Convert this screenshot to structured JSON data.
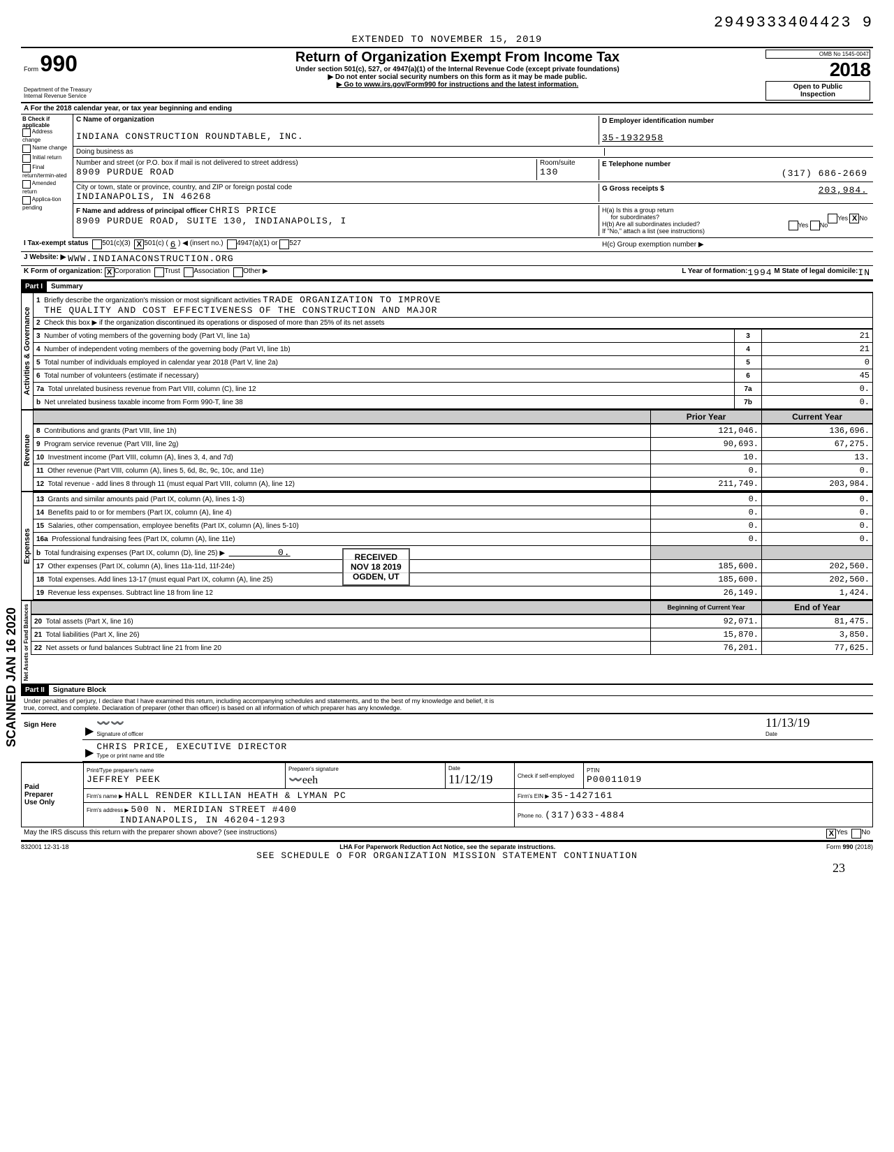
{
  "top_id": "2949333404423 9",
  "extended": "EXTENDED TO NOVEMBER 15, 2019",
  "form": {
    "number": "990",
    "prefix": "Form",
    "dept": "Department of the Treasury",
    "irs": "Internal Revenue Service"
  },
  "title": {
    "main": "Return of Organization Exempt From Income Tax",
    "sub": "Under section 501(c), 527, or 4947(a)(1) of the Internal Revenue Code (except private foundations)",
    "note1": "▶ Do not enter social security numbers on this form as it may be made public.",
    "note2": "▶ Go to www.irs.gov/Form990 for instructions and the latest information."
  },
  "year_box": {
    "omb": "OMB No 1545-0047",
    "year": "2018",
    "open": "Open to Public",
    "insp": "Inspection"
  },
  "row_a": "A For the 2018 calendar year, or tax year beginning                                              and ending",
  "section_b": {
    "header": "B Check if applicable",
    "items": [
      "Address change",
      "Name change",
      "Initial return",
      "Final return/termin-ated",
      "Amended return",
      "Applica-tion pending"
    ]
  },
  "section_c": {
    "name_label": "C Name of organization",
    "name": "INDIANA CONSTRUCTION ROUNDTABLE, INC.",
    "dba_label": "Doing business as",
    "addr_label": "Number and street (or P.O. box if mail is not delivered to street address)",
    "addr": "8909 PURDUE ROAD",
    "room_label": "Room/suite",
    "room": "130",
    "city_label": "City or town, state or province, country, and ZIP or foreign postal code",
    "city": "INDIANAPOLIS, IN  46268",
    "f_label": "F Name and address of principal officer",
    "f_name": "CHRIS PRICE",
    "f_addr": "8909 PURDUE ROAD, SUITE 130, INDIANAPOLIS, I"
  },
  "section_d": {
    "label": "D Employer identification number",
    "ein": "35-1932958",
    "e_label": "E Telephone number",
    "phone": "(317) 686-2669",
    "g_label": "G Gross receipts $",
    "g_val": "203,984.",
    "ha_label": "H(a) Is this a group return",
    "ha_sub": "for subordinates?",
    "hb_label": "H(b) Are all subordinates included?",
    "hb_note": "If \"No,\" attach a list (see instructions)",
    "hc_label": "H(c) Group exemption number ▶"
  },
  "tax_exempt": {
    "label": "I Tax-exempt status",
    "c3": "501(c)(3)",
    "c": "501(c) (",
    "cnum": "6",
    "cins": ") ◀ (insert no.)",
    "a1": "4947(a)(1) or",
    "o527": "527"
  },
  "website": {
    "label": "J Website: ▶",
    "val": "WWW.INDIANACONSTRUCTION.ORG"
  },
  "line_k": {
    "label": "K Form of organization:",
    "corp": "Corporation",
    "trust": "Trust",
    "assoc": "Association",
    "other": "Other ▶",
    "l_label": "L Year of formation:",
    "l_val": "1994",
    "m_label": "M State of legal domicile:",
    "m_val": "IN"
  },
  "part1": {
    "header": "Part I",
    "title": "Summary",
    "line1_label": "Briefly describe the organization's mission or most significant activities",
    "line1_val": "TRADE ORGANIZATION TO IMPROVE",
    "line1_val2": "THE QUALITY AND COST EFFECTIVENESS OF THE CONSTRUCTION AND MAJOR",
    "line2": "Check this box ▶         if the organization discontinued its operations or disposed of more than 25% of its net assets",
    "rows_gov": [
      {
        "n": "3",
        "desc": "Number of voting members of the governing body (Part VI, line 1a)",
        "box": "3",
        "val": "21"
      },
      {
        "n": "4",
        "desc": "Number of independent voting members of the governing body (Part VI, line 1b)",
        "box": "4",
        "val": "21"
      },
      {
        "n": "5",
        "desc": "Total number of individuals employed in calendar year 2018 (Part V, line 2a)",
        "box": "5",
        "val": "0"
      },
      {
        "n": "6",
        "desc": "Total number of volunteers (estimate if necessary)",
        "box": "6",
        "val": "45"
      },
      {
        "n": "7a",
        "desc": "Total unrelated business revenue from Part VIII, column (C), line 12",
        "box": "7a",
        "val": "0."
      },
      {
        "n": "b",
        "desc": "Net unrelated business taxable income from Form 990-T, line 38",
        "box": "7b",
        "val": "0."
      }
    ],
    "col_headers": {
      "prior": "Prior Year",
      "current": "Current Year"
    },
    "rows_rev": [
      {
        "n": "8",
        "desc": "Contributions and grants (Part VIII, line 1h)",
        "p": "121,046.",
        "c": "136,696."
      },
      {
        "n": "9",
        "desc": "Program service revenue (Part VIII, line 2g)",
        "p": "90,693.",
        "c": "67,275."
      },
      {
        "n": "10",
        "desc": "Investment income (Part VIII, column (A), lines 3, 4, and 7d)",
        "p": "10.",
        "c": "13."
      },
      {
        "n": "11",
        "desc": "Other revenue (Part VIII, column (A), lines 5, 6d, 8c, 9c, 10c, and 11e)",
        "p": "0.",
        "c": "0."
      },
      {
        "n": "12",
        "desc": "Total revenue - add lines 8 through 11 (must equal Part VIII, column (A), line 12)",
        "p": "211,749.",
        "c": "203,984."
      }
    ],
    "rows_exp": [
      {
        "n": "13",
        "desc": "Grants and similar amounts paid (Part IX, column (A), lines 1-3)",
        "p": "0.",
        "c": "0."
      },
      {
        "n": "14",
        "desc": "Benefits paid to or for members (Part IX, column (A), line 4)",
        "p": "0.",
        "c": "0."
      },
      {
        "n": "15",
        "desc": "Salaries, other compensation, employee benefits (Part IX, column (A), lines 5-10)",
        "p": "0.",
        "c": "0."
      },
      {
        "n": "16a",
        "desc": "Professional fundraising fees (Part IX, column (A), line 11e)",
        "p": "0.",
        "c": "0."
      },
      {
        "n": "b",
        "desc": "Total fundraising expenses (Part IX, column (D), line 25)  ▶",
        "p": "",
        "c": "",
        "inline": "0."
      },
      {
        "n": "17",
        "desc": "Other expenses (Part IX, column (A), lines 11a-11d, 11f-24e)",
        "p": "185,600.",
        "c": "202,560."
      },
      {
        "n": "18",
        "desc": "Total expenses. Add lines 13-17 (must equal Part IX, column (A), line 25)",
        "p": "185,600.",
        "c": "202,560."
      },
      {
        "n": "19",
        "desc": "Revenue less expenses. Subtract line 18 from line 12",
        "p": "26,149.",
        "c": "1,424."
      }
    ],
    "col_headers2": {
      "begin": "Beginning of Current Year",
      "end": "End of Year"
    },
    "rows_net": [
      {
        "n": "20",
        "desc": "Total assets (Part X, line 16)",
        "p": "92,071.",
        "c": "81,475."
      },
      {
        "n": "21",
        "desc": "Total liabilities (Part X, line 26)",
        "p": "15,870.",
        "c": "3,850."
      },
      {
        "n": "22",
        "desc": "Net assets or fund balances Subtract line 21 from line 20",
        "p": "76,201.",
        "c": "77,625."
      }
    ],
    "vert_labels": {
      "gov": "Activities & Governance",
      "rev": "Revenue",
      "exp": "Expenses",
      "net": "Net Assets or Fund Balances"
    }
  },
  "part2": {
    "header": "Part II",
    "title": "Signature Block",
    "decl1": "Under penalties of perjury, I declare that I have examined this return, including accompanying schedules and statements, and to the best of my knowledge and belief, it is",
    "decl2": "true, correct, and complete. Declaration of preparer (other than officer) is based on all information of which preparer has any knowledge.",
    "sign_here": "Sign Here",
    "sig_label": "Signature of officer",
    "date_label": "Date",
    "date_val": "11/13/19",
    "officer": "CHRIS PRICE, EXECUTIVE DIRECTOR",
    "officer_label": "Type or print name and title"
  },
  "preparer": {
    "left": [
      "Paid",
      "Preparer",
      "Use Only"
    ],
    "name_label": "Print/Type preparer's name",
    "name": "JEFFREY PEEK",
    "sig_label": "Preparer's signature",
    "date_label": "Date",
    "date_val": "11/12/19",
    "check_label": "Check        if self-employed",
    "ptin_label": "PTIN",
    "ptin": "P00011019",
    "firm_label": "Firm's name ▶",
    "firm": "HALL RENDER KILLIAN HEATH & LYMAN PC",
    "ein_label": "Firm's EIN ▶",
    "ein": "35-1427161",
    "addr_label": "Firm's address ▶",
    "addr1": "500 N. MERIDIAN STREET #400",
    "addr2": "INDIANAPOLIS, IN 46204-1293",
    "phone_label": "Phone no.",
    "phone": "(317)633-4884"
  },
  "discuss": {
    "q": "May the IRS discuss this return with the preparer shown above? (see instructions)",
    "yes": "Yes",
    "no": "No"
  },
  "footer": {
    "code": "832001 12-31-18",
    "lha": "LHA For Paperwork Reduction Act Notice, see the separate instructions.",
    "form": "Form 990 (2018)",
    "sched": "SEE SCHEDULE O FOR ORGANIZATION MISSION STATEMENT CONTINUATION"
  },
  "stamps": {
    "received": "RECEIVED",
    "date": "NOV 18 2019",
    "ogden": "OGDEN, UT",
    "scanned": "SCANNED JAN 16 2020",
    "hand_num": "23"
  }
}
